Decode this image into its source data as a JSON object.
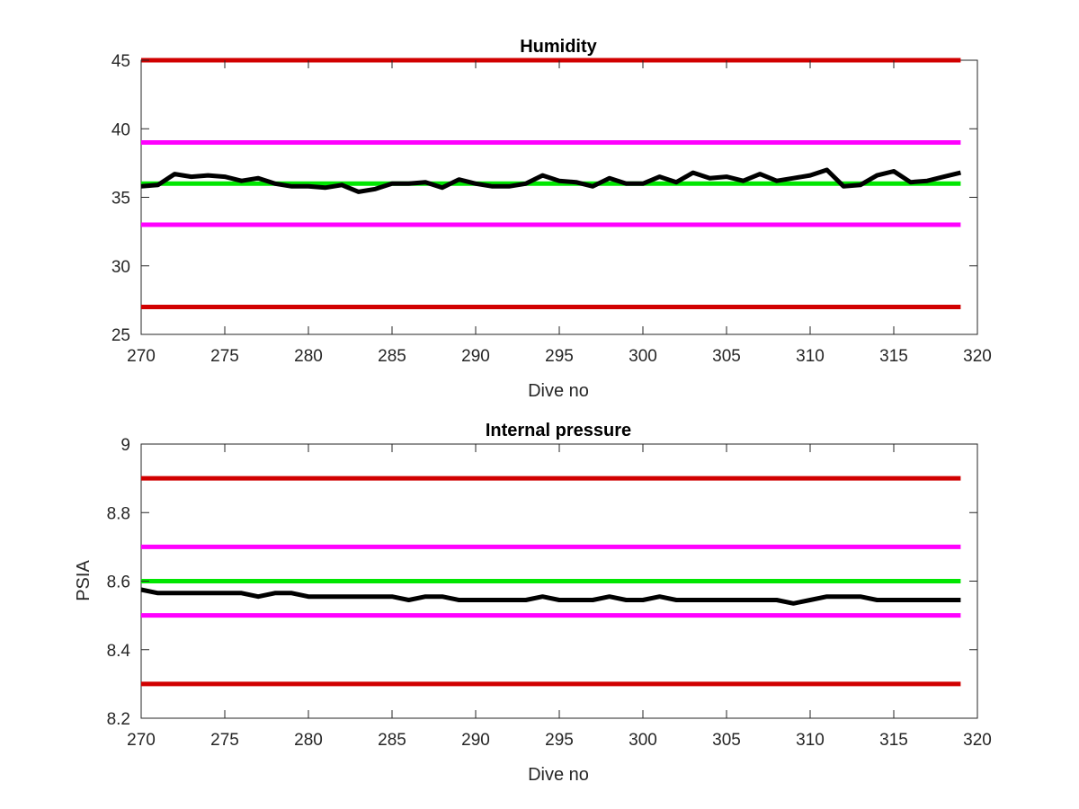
{
  "chart_data": [
    {
      "type": "line",
      "title": "Humidity",
      "xlabel": "Dive no",
      "ylabel": "",
      "xlim": [
        270,
        320
      ],
      "ylim": [
        25,
        45
      ],
      "xticks": [
        270,
        275,
        280,
        285,
        290,
        295,
        300,
        305,
        310,
        315,
        320
      ],
      "yticks": [
        25,
        30,
        35,
        40,
        45
      ],
      "grid": false,
      "thresholds": [
        {
          "value": 45,
          "color": "#d10000"
        },
        {
          "value": 39,
          "color": "#ff00ff"
        },
        {
          "value": 36,
          "color": "#00e600"
        },
        {
          "value": 33,
          "color": "#ff00ff"
        },
        {
          "value": 27,
          "color": "#d10000"
        }
      ],
      "series": [
        {
          "color": "#000000",
          "x": [
            270,
            271,
            272,
            273,
            274,
            275,
            276,
            277,
            278,
            279,
            280,
            281,
            282,
            283,
            284,
            285,
            286,
            287,
            288,
            289,
            290,
            291,
            292,
            293,
            294,
            295,
            296,
            297,
            298,
            299,
            300,
            301,
            302,
            303,
            304,
            305,
            306,
            307,
            308,
            309,
            310,
            311,
            312,
            313,
            314,
            315,
            316,
            317,
            318,
            319
          ],
          "y": [
            35.8,
            35.9,
            36.7,
            36.5,
            36.6,
            36.5,
            36.2,
            36.4,
            36.0,
            35.8,
            35.8,
            35.7,
            35.9,
            35.4,
            35.6,
            36.0,
            36.0,
            36.1,
            35.7,
            36.3,
            36.0,
            35.8,
            35.8,
            36.0,
            36.6,
            36.2,
            36.1,
            35.8,
            36.4,
            36.0,
            36.0,
            36.5,
            36.1,
            36.8,
            36.4,
            36.5,
            36.2,
            36.7,
            36.2,
            36.4,
            36.6,
            37.0,
            35.8,
            35.9,
            36.6,
            36.9,
            36.1,
            36.2,
            36.5,
            36.8
          ]
        }
      ]
    },
    {
      "type": "line",
      "title": "Internal pressure",
      "xlabel": "Dive no",
      "ylabel": "PSIA",
      "xlim": [
        270,
        320
      ],
      "ylim": [
        8.2,
        9.0
      ],
      "xticks": [
        270,
        275,
        280,
        285,
        290,
        295,
        300,
        305,
        310,
        315,
        320
      ],
      "yticks": [
        8.2,
        8.4,
        8.6,
        8.8,
        9.0
      ],
      "ytick_labels": [
        "8.2",
        "8.4",
        "8.6",
        "8.8",
        "9"
      ],
      "grid": false,
      "thresholds": [
        {
          "value": 8.9,
          "color": "#d10000"
        },
        {
          "value": 8.7,
          "color": "#ff00ff"
        },
        {
          "value": 8.6,
          "color": "#00e600"
        },
        {
          "value": 8.5,
          "color": "#ff00ff"
        },
        {
          "value": 8.3,
          "color": "#d10000"
        }
      ],
      "series": [
        {
          "color": "#000000",
          "x": [
            270,
            271,
            272,
            273,
            274,
            275,
            276,
            277,
            278,
            279,
            280,
            281,
            282,
            283,
            284,
            285,
            286,
            287,
            288,
            289,
            290,
            291,
            292,
            293,
            294,
            295,
            296,
            297,
            298,
            299,
            300,
            301,
            302,
            303,
            304,
            305,
            306,
            307,
            308,
            309,
            310,
            311,
            312,
            313,
            314,
            315,
            316,
            317,
            318,
            319
          ],
          "y": [
            8.575,
            8.565,
            8.565,
            8.565,
            8.565,
            8.565,
            8.565,
            8.555,
            8.565,
            8.565,
            8.555,
            8.555,
            8.555,
            8.555,
            8.555,
            8.555,
            8.545,
            8.555,
            8.555,
            8.545,
            8.545,
            8.545,
            8.545,
            8.545,
            8.555,
            8.545,
            8.545,
            8.545,
            8.555,
            8.545,
            8.545,
            8.555,
            8.545,
            8.545,
            8.545,
            8.545,
            8.545,
            8.545,
            8.545,
            8.535,
            8.545,
            8.555,
            8.555,
            8.555,
            8.545,
            8.545,
            8.545,
            8.545,
            8.545,
            8.545
          ]
        }
      ]
    }
  ]
}
